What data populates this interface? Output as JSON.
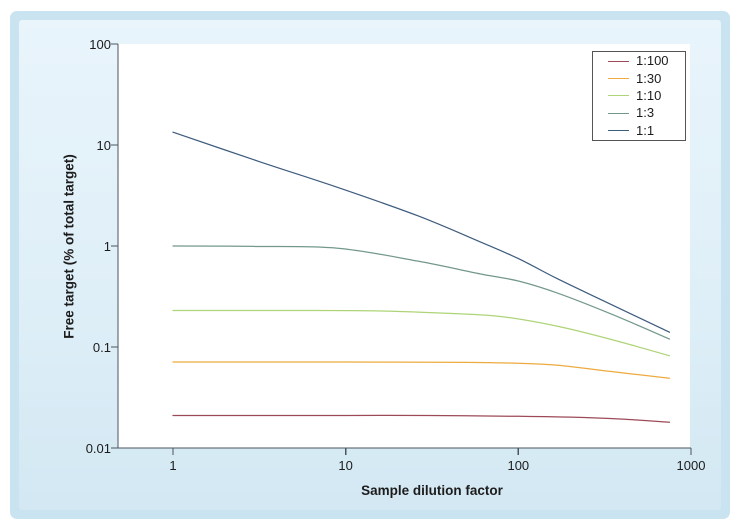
{
  "chart_data": {
    "type": "line",
    "title": "",
    "xlabel": "Sample dilution factor",
    "ylabel": "Free target (% of total target)",
    "x_scale": "log",
    "y_scale": "log",
    "xlim": [
      1,
      1000
    ],
    "ylim": [
      0.01,
      100
    ],
    "grid": false,
    "legend_position": "top-right",
    "x_ticks": {
      "values": [
        1,
        10,
        100,
        1000
      ],
      "labels": [
        "1",
        "10",
        "100",
        "1000"
      ]
    },
    "y_ticks": {
      "values": [
        100,
        10,
        1,
        0.1,
        0.01
      ],
      "labels": [
        "100",
        "10",
        "1",
        "0.1",
        "0.01"
      ]
    },
    "series": [
      {
        "name": "1:100",
        "color": "#9c4a57",
        "points": [
          [
            1,
            0.021
          ],
          [
            3,
            0.021
          ],
          [
            10,
            0.021
          ],
          [
            30,
            0.021
          ],
          [
            100,
            0.0206
          ],
          [
            200,
            0.0202
          ],
          [
            400,
            0.0193
          ],
          [
            750,
            0.018
          ]
        ]
      },
      {
        "name": "1:30",
        "color": "#edaa3f",
        "points": [
          [
            1,
            0.071
          ],
          [
            3,
            0.071
          ],
          [
            10,
            0.071
          ],
          [
            50,
            0.0705
          ],
          [
            100,
            0.069
          ],
          [
            170,
            0.066
          ],
          [
            350,
            0.057
          ],
          [
            750,
            0.049
          ]
        ]
      },
      {
        "name": "1:10",
        "color": "#aed477",
        "points": [
          [
            1,
            0.23
          ],
          [
            5,
            0.23
          ],
          [
            15,
            0.228
          ],
          [
            40,
            0.215
          ],
          [
            80,
            0.2
          ],
          [
            170,
            0.16
          ],
          [
            350,
            0.118
          ],
          [
            750,
            0.082
          ]
        ]
      },
      {
        "name": "1:3",
        "color": "#73988b",
        "points": [
          [
            1,
            1.0
          ],
          [
            3,
            0.99
          ],
          [
            9,
            0.95
          ],
          [
            26,
            0.71
          ],
          [
            60,
            0.53
          ],
          [
            100,
            0.45
          ],
          [
            170,
            0.34
          ],
          [
            350,
            0.21
          ],
          [
            750,
            0.12
          ]
        ]
      },
      {
        "name": "1:1",
        "color": "#3e5c7e",
        "points": [
          [
            1,
            13.4
          ],
          [
            3.2,
            6.8
          ],
          [
            9,
            3.8
          ],
          [
            26,
            2.0
          ],
          [
            60,
            1.1
          ],
          [
            100,
            0.75
          ],
          [
            170,
            0.47
          ],
          [
            320,
            0.28
          ],
          [
            750,
            0.14
          ]
        ]
      }
    ]
  },
  "style": {
    "panel_border": "#c9e3f1",
    "panel_fill_top": "#e9f4fb",
    "panel_fill_mid": "#dfeff8",
    "panel_fill_bottom": "#d3e8f3",
    "plot_bg": "#ffffff",
    "axis_color": "#4a5560",
    "text_color": "#1c1c1c",
    "legend_border": "#555555"
  }
}
